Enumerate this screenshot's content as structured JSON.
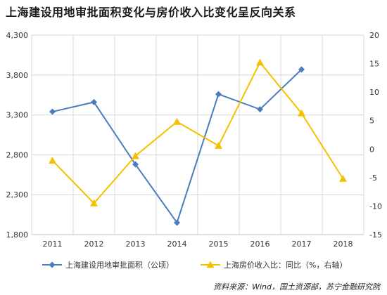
{
  "title": "上海建设用地审批面积变化与房价收入比变化呈反向关系",
  "source": "资料来源：Wind，国土资源部，苏宁金融研究院",
  "chart_data": {
    "type": "line",
    "categories": [
      "2011",
      "2012",
      "2013",
      "2014",
      "2015",
      "2016",
      "2017",
      "2018"
    ],
    "left_axis": {
      "ylim": [
        1800,
        4300
      ],
      "ticks": [
        "1,800",
        "2,300",
        "2,800",
        "3,300",
        "3,800",
        "4,300"
      ],
      "tick_values": [
        1800,
        2300,
        2800,
        3300,
        3800,
        4300
      ]
    },
    "right_axis": {
      "ylim": [
        -15,
        20
      ],
      "ticks": [
        "-15",
        "-10",
        "-5",
        "0",
        "5",
        "10",
        "15",
        "20"
      ],
      "tick_values": [
        -15,
        -10,
        -5,
        0,
        5,
        10,
        15,
        20
      ]
    },
    "series": [
      {
        "name": "上海建设用地审批面积（公顷）",
        "axis": "left",
        "color": "#4a7cc0",
        "marker": "diamond",
        "values": [
          3340,
          3460,
          2680,
          1950,
          3560,
          3370,
          3870,
          null
        ]
      },
      {
        "name": "上海房价收入比：同比（%，右轴）",
        "axis": "right",
        "color": "#f5c000",
        "marker": "triangle",
        "values": [
          -2,
          -9.5,
          -1.2,
          4.8,
          0.6,
          15.2,
          6.3,
          -5.2
        ]
      }
    ],
    "grid": true,
    "legend": "bottom"
  }
}
